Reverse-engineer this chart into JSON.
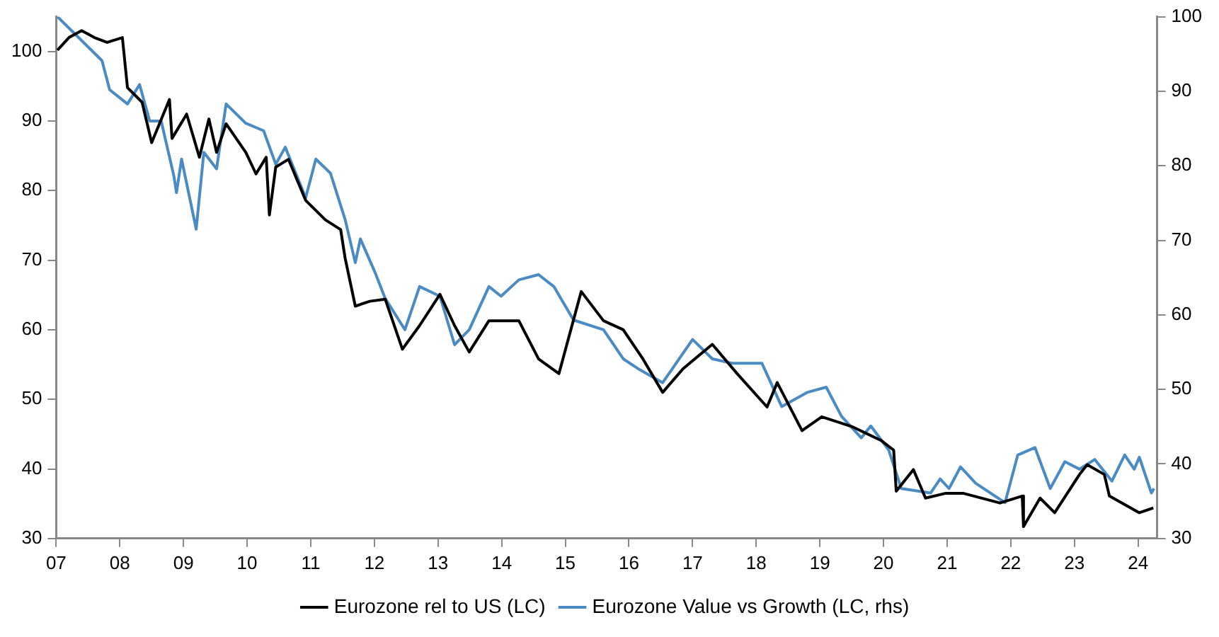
{
  "chart_data": {
    "type": "line",
    "legend": "bottom",
    "grid": false,
    "marker": "none",
    "line_style": "solid",
    "xlim": [
      2007,
      2024.3
    ],
    "xticks": [
      {
        "value": 2007,
        "label": "07"
      },
      {
        "value": 2008,
        "label": "08"
      },
      {
        "value": 2009,
        "label": "09"
      },
      {
        "value": 2010,
        "label": "10"
      },
      {
        "value": 2011,
        "label": "11"
      },
      {
        "value": 2012,
        "label": "12"
      },
      {
        "value": 2013,
        "label": "13"
      },
      {
        "value": 2014,
        "label": "14"
      },
      {
        "value": 2015,
        "label": "15"
      },
      {
        "value": 2016,
        "label": "16"
      },
      {
        "value": 2017,
        "label": "17"
      },
      {
        "value": 2018,
        "label": "18"
      },
      {
        "value": 2019,
        "label": "19"
      },
      {
        "value": 2020,
        "label": "20"
      },
      {
        "value": 2021,
        "label": "21"
      },
      {
        "value": 2022,
        "label": "22"
      },
      {
        "value": 2023,
        "label": "23"
      },
      {
        "value": 2024,
        "label": "24"
      }
    ],
    "ylim": [
      30,
      105
    ],
    "yticks": [
      30,
      40,
      50,
      60,
      70,
      80,
      90,
      100
    ],
    "y2lim": [
      30,
      100
    ],
    "y2ticks": [
      30,
      40,
      50,
      60,
      70,
      80,
      90,
      100
    ],
    "series": [
      {
        "name": "Eurozone rel to US (LC)",
        "color": "#000000",
        "x": [
          2007.02,
          2007.2,
          2007.4,
          2007.6,
          2007.8,
          2008.04,
          2008.12,
          2008.35,
          2008.5,
          2008.78,
          2008.82,
          2009.05,
          2009.25,
          2009.4,
          2009.52,
          2009.67,
          2009.98,
          2010.14,
          2010.3,
          2010.35,
          2010.45,
          2010.65,
          2010.92,
          2011.23,
          2011.47,
          2011.54,
          2011.7,
          2011.93,
          2012.17,
          2012.44,
          2012.71,
          2013.03,
          2013.26,
          2013.49,
          2013.8,
          2014.27,
          2014.58,
          2014.9,
          2015.25,
          2015.6,
          2015.91,
          2016.22,
          2016.53,
          2016.85,
          2017.31,
          2017.7,
          2018.17,
          2018.33,
          2018.72,
          2019.03,
          2019.5,
          2019.96,
          2020.16,
          2020.2,
          2020.47,
          2020.66,
          2020.98,
          2021.25,
          2021.83,
          2022.18,
          2022.2,
          2022.46,
          2022.69,
          2023.08,
          2023.2,
          2023.47,
          2023.55,
          2024.02,
          2024.24
        ],
        "values": [
          100.2,
          102,
          103,
          102,
          101.3,
          102,
          94.8,
          92.7,
          86.9,
          93.1,
          87.5,
          91,
          84.8,
          90.3,
          85.5,
          89.6,
          85.5,
          82.4,
          84.8,
          76.5,
          83.4,
          84.5,
          78.6,
          75.8,
          74.4,
          70.3,
          63.4,
          64.1,
          64.4,
          57.2,
          60.6,
          65.1,
          60.6,
          56.8,
          61.3,
          61.3,
          55.8,
          53.7,
          65.5,
          61.3,
          60,
          55.8,
          51,
          54.4,
          57.9,
          53.7,
          48.9,
          52.4,
          45.5,
          47.5,
          46.1,
          44.1,
          42.7,
          36.8,
          39.9,
          35.8,
          36.5,
          36.5,
          35.1,
          36.1,
          31.7,
          35.8,
          33.7,
          39.2,
          40.6,
          39.2,
          36.1,
          33.7,
          34.4
        ]
      },
      {
        "name": "Eurozone Value vs Growth (LC, rhs)",
        "color": "#4a8bc4",
        "axis": "y2",
        "x": [
          2007.02,
          2007.34,
          2007.72,
          2007.84,
          2008.12,
          2008.31,
          2008.47,
          2008.65,
          2008.85,
          2008.89,
          2008.97,
          2009.2,
          2009.32,
          2009.52,
          2009.67,
          2009.98,
          2010.26,
          2010.45,
          2010.6,
          2010.92,
          2011.08,
          2011.31,
          2011.54,
          2011.7,
          2011.78,
          2012.01,
          2012.17,
          2012.48,
          2012.71,
          2013.03,
          2013.26,
          2013.49,
          2013.8,
          2013.99,
          2014.27,
          2014.58,
          2014.82,
          2015.13,
          2015.6,
          2015.91,
          2016.14,
          2016.53,
          2017,
          2017.31,
          2017.62,
          2018.09,
          2018.4,
          2018.8,
          2019.1,
          2019.34,
          2019.65,
          2019.8,
          2020.08,
          2020.28,
          2020.74,
          2020.89,
          2021.03,
          2021.21,
          2021.45,
          2021.91,
          2022.11,
          2022.38,
          2022.62,
          2022.85,
          2023.08,
          2023.32,
          2023.59,
          2023.79,
          2023.94,
          2024.02,
          2024.21,
          2024.25
        ],
        "values": [
          100,
          97.3,
          94.1,
          90.2,
          88.3,
          90.9,
          86,
          86,
          78.6,
          76.4,
          80.9,
          71.5,
          81.8,
          79.6,
          88.3,
          85.7,
          84.7,
          80.2,
          82.5,
          75.7,
          80.9,
          79,
          72.8,
          67,
          70.2,
          65.7,
          62.2,
          58,
          63.8,
          62.5,
          56,
          58,
          63.8,
          62.5,
          64.7,
          65.4,
          63.8,
          59.3,
          58,
          54.1,
          52.8,
          50.9,
          56.7,
          54.1,
          53.5,
          53.5,
          47.7,
          49.6,
          50.3,
          46.4,
          43.5,
          45.1,
          41.9,
          36.7,
          36.1,
          38,
          36.7,
          39.6,
          37.4,
          34.8,
          41.2,
          42.2,
          36.7,
          40.3,
          39.3,
          40.6,
          37.7,
          41.2,
          39.3,
          40.9,
          36.1,
          36.7
        ]
      }
    ]
  }
}
